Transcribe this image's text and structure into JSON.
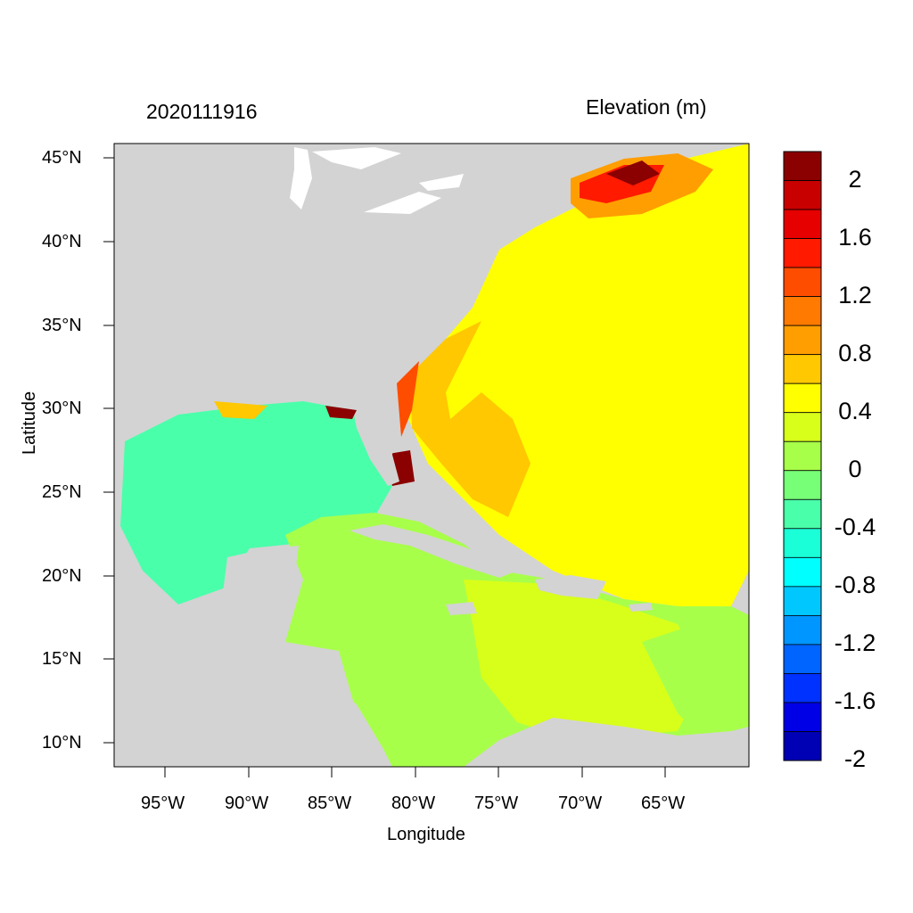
{
  "header": {
    "date_label": "2020111916",
    "var_label": "Elevation (m)"
  },
  "axes": {
    "xlabel": "Longitude",
    "ylabel": "Latitude",
    "lat_ticks": [
      "45°N",
      "40°N",
      "35°N",
      "30°N",
      "25°N",
      "20°N",
      "15°N",
      "10°N"
    ],
    "lon_ticks": [
      "95°W",
      "90°W",
      "85°W",
      "80°W",
      "75°W",
      "70°W",
      "65°W"
    ]
  },
  "colorbar": {
    "labels": [
      "2",
      "1.6",
      "1.2",
      "0.8",
      "0.4",
      "0",
      "-0.4",
      "-0.8",
      "-1.2",
      "-1.6",
      "-2"
    ],
    "colors": [
      "#8b0000",
      "#c80000",
      "#e60000",
      "#ff1a00",
      "#ff4d00",
      "#ff7a00",
      "#ff9e00",
      "#ffc800",
      "#ffff00",
      "#d8ff1a",
      "#a8ff4a",
      "#78ff78",
      "#4affaa",
      "#1affd8",
      "#00ffff",
      "#00c8ff",
      "#0096ff",
      "#0064ff",
      "#0032ff",
      "#0000e6",
      "#0000b4"
    ]
  },
  "colors": {
    "land": "#d3d3d3",
    "frame": "#000000"
  }
}
